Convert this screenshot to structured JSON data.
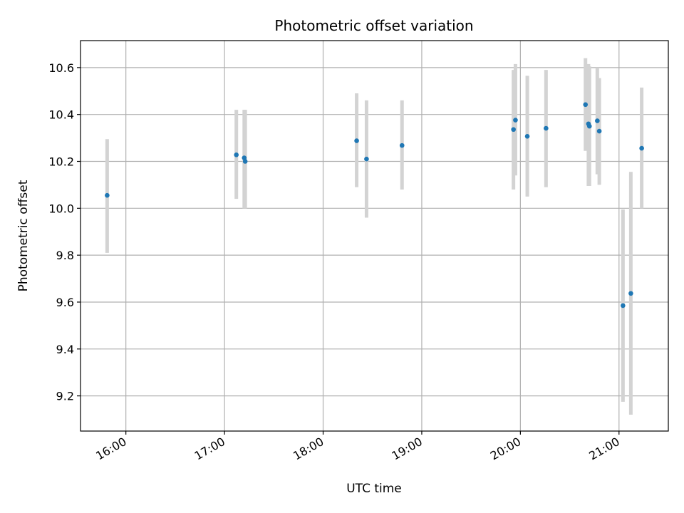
{
  "chart_data": {
    "type": "scatter",
    "title": "Photometric offset variation",
    "xlabel": "UTC time",
    "ylabel": "Photometric offset",
    "x_unit": "hours UTC",
    "xlim": [
      15.54,
      21.5
    ],
    "ylim": [
      9.05,
      10.715
    ],
    "x_ticks": [
      {
        "value": 16,
        "label": "16:00"
      },
      {
        "value": 17,
        "label": "17:00"
      },
      {
        "value": 18,
        "label": "18:00"
      },
      {
        "value": 19,
        "label": "19:00"
      },
      {
        "value": 20,
        "label": "20:00"
      },
      {
        "value": 21,
        "label": "21:00"
      }
    ],
    "y_ticks": [
      {
        "value": 9.2,
        "label": "9.2"
      },
      {
        "value": 9.4,
        "label": "9.4"
      },
      {
        "value": 9.6,
        "label": "9.6"
      },
      {
        "value": 9.8,
        "label": "9.8"
      },
      {
        "value": 10.0,
        "label": "10.0"
      },
      {
        "value": 10.2,
        "label": "10.2"
      },
      {
        "value": 10.4,
        "label": "10.4"
      },
      {
        "value": 10.6,
        "label": "10.6"
      }
    ],
    "grid": true,
    "colors": {
      "point": "#1f77b4",
      "errorbar": "#d3d3d3"
    },
    "points": [
      {
        "x": 15.81,
        "y": 10.055,
        "low": 9.81,
        "high": 10.295
      },
      {
        "x": 17.12,
        "y": 10.228,
        "low": 10.04,
        "high": 10.42
      },
      {
        "x": 17.2,
        "y": 10.215,
        "low": 10.0,
        "high": 10.42
      },
      {
        "x": 17.21,
        "y": 10.2,
        "low": 10.0,
        "high": 10.42
      },
      {
        "x": 18.34,
        "y": 10.288,
        "low": 10.09,
        "high": 10.49
      },
      {
        "x": 18.44,
        "y": 10.21,
        "low": 9.96,
        "high": 10.46
      },
      {
        "x": 18.8,
        "y": 10.268,
        "low": 10.08,
        "high": 10.46
      },
      {
        "x": 19.93,
        "y": 10.336,
        "low": 10.08,
        "high": 10.59
      },
      {
        "x": 19.95,
        "y": 10.376,
        "low": 10.14,
        "high": 10.615
      },
      {
        "x": 20.07,
        "y": 10.307,
        "low": 10.05,
        "high": 10.565
      },
      {
        "x": 20.26,
        "y": 10.341,
        "low": 10.09,
        "high": 10.59
      },
      {
        "x": 20.66,
        "y": 10.442,
        "low": 10.245,
        "high": 10.64
      },
      {
        "x": 20.69,
        "y": 10.36,
        "low": 10.095,
        "high": 10.615
      },
      {
        "x": 20.7,
        "y": 10.35,
        "low": 10.095,
        "high": 10.605
      },
      {
        "x": 20.78,
        "y": 10.373,
        "low": 10.145,
        "high": 10.6
      },
      {
        "x": 20.8,
        "y": 10.329,
        "low": 10.1,
        "high": 10.555
      },
      {
        "x": 21.04,
        "y": 9.585,
        "low": 9.175,
        "high": 9.995
      },
      {
        "x": 21.12,
        "y": 9.637,
        "low": 9.12,
        "high": 10.155
      },
      {
        "x": 21.23,
        "y": 10.256,
        "low": 10.0,
        "high": 10.515
      }
    ]
  }
}
